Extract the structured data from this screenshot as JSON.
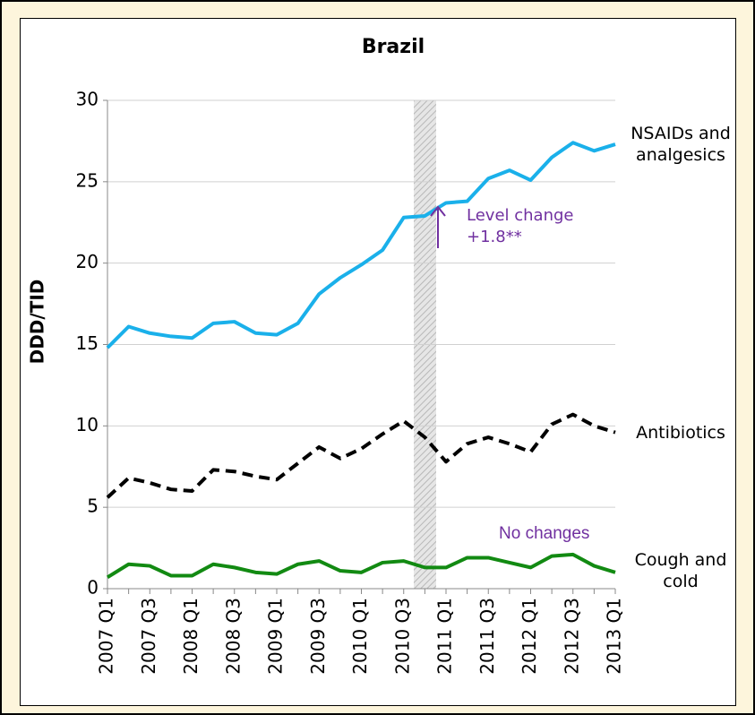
{
  "chart_data": {
    "type": "line",
    "title": "Brazil",
    "y_label": "DDD/TID",
    "categories": [
      "2007 Q1",
      null,
      "2007 Q3",
      null,
      "2008 Q1",
      null,
      "2008 Q3",
      null,
      "2009 Q1",
      null,
      "2009 Q3",
      null,
      "2010 Q1",
      null,
      "2010 Q3",
      null,
      "2011 Q1",
      null,
      "2011 Q3",
      null,
      "2012 Q1",
      null,
      "2012 Q3",
      null,
      "2013 Q1"
    ],
    "series": [
      {
        "name": "NSAIDs and analgesics",
        "color": "#1ab0ea",
        "dashed": false,
        "values": [
          14.8,
          16.1,
          15.7,
          15.5,
          15.4,
          16.3,
          16.4,
          15.7,
          15.6,
          16.3,
          18.1,
          19.1,
          19.9,
          20.8,
          22.8,
          22.9,
          23.7,
          23.8,
          25.2,
          25.7,
          25.1,
          26.5,
          27.4,
          26.9,
          27.3
        ]
      },
      {
        "name": "Antibiotics",
        "color": "#000000",
        "dashed": true,
        "values": [
          5.6,
          6.8,
          6.5,
          6.1,
          6.0,
          7.3,
          7.2,
          6.9,
          6.7,
          7.7,
          8.7,
          8.0,
          8.6,
          9.5,
          10.3,
          9.3,
          7.8,
          8.9,
          9.3,
          8.9,
          8.4,
          10.1,
          10.7,
          10.0,
          9.6
        ]
      },
      {
        "name": "Cough and cold",
        "color": "#128a12",
        "dashed": false,
        "values": [
          0.7,
          1.5,
          1.4,
          0.8,
          0.8,
          1.5,
          1.3,
          1.0,
          0.9,
          1.5,
          1.7,
          1.1,
          1.0,
          1.6,
          1.7,
          1.3,
          1.3,
          1.9,
          1.9,
          1.6,
          1.3,
          2.0,
          2.1,
          1.4,
          1.0
        ]
      }
    ],
    "annotations": [
      "Level change +1.8**",
      "No changes"
    ],
    "annotation_color": "#7030a0",
    "ylim": [
      0,
      30
    ],
    "yticks": [
      0,
      5,
      10,
      15,
      20,
      25,
      30
    ],
    "grid": true
  }
}
